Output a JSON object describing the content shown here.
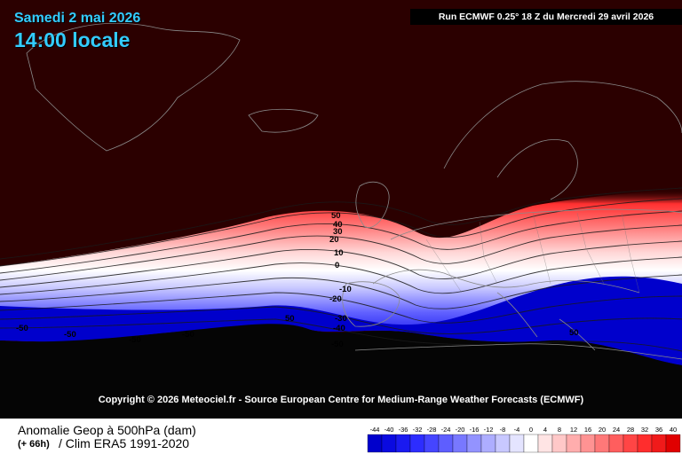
{
  "header": {
    "date": "Samedi 2 mai 2026",
    "time": "14:00 locale",
    "run_info": "Run ECMWF 0.25° 18 Z du Mercredi 29 avril 2026"
  },
  "map": {
    "copyright": "Copyright © 2026 Meteociel.fr - Source European Centre for Medium-Range Weather Forecasts (ECMWF)",
    "contour_labels": [
      "50",
      "40",
      "30",
      "20",
      "10",
      "0",
      "-10",
      "-20",
      "-30",
      "-40",
      "-50",
      "-50",
      "-50",
      "-50",
      "50",
      "50",
      "-50"
    ],
    "colors": {
      "background": "#2b0000",
      "ocean_bottom": "#000000",
      "coastline": "#8a8a8a"
    }
  },
  "legend": {
    "title": "Anomalie Geop à 500hPa (dam)",
    "lead": "(+ 66h)",
    "clim": "/ Clim ERA5 1991-2020",
    "scale_values": [
      "-44",
      "-40",
      "-36",
      "-32",
      "-28",
      "-24",
      "-20",
      "-16",
      "-12",
      "-8",
      "-4",
      "0",
      "4",
      "8",
      "12",
      "16",
      "20",
      "24",
      "28",
      "32",
      "36",
      "40"
    ],
    "scale_colors": [
      "#0000cc",
      "#0a0ae0",
      "#1a1af0",
      "#2d2dff",
      "#4545ff",
      "#5e5eff",
      "#7878ff",
      "#9393ff",
      "#adadff",
      "#c8c8ff",
      "#e4e4ff",
      "#ffffff",
      "#ffe4e4",
      "#ffc8c8",
      "#ffadad",
      "#ff9393",
      "#ff7878",
      "#ff5e5e",
      "#ff4545",
      "#ff2d2d",
      "#f01a1a",
      "#e00000"
    ]
  }
}
